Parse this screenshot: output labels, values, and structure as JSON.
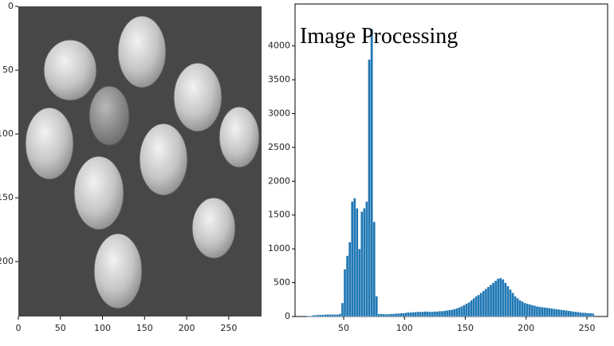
{
  "chart_data": [
    {
      "type": "image",
      "xlim": [
        0,
        289
      ],
      "ylim": [
        243,
        0
      ],
      "xticks": [
        0,
        50,
        100,
        150,
        200,
        250
      ],
      "yticks": [
        0,
        50,
        100,
        150,
        200
      ]
    },
    {
      "type": "histogram",
      "title": "Image Processing",
      "color": "#1f77b4",
      "bins": [
        20,
        22,
        24,
        26,
        28,
        30,
        32,
        34,
        36,
        38,
        40,
        42,
        44,
        46,
        48,
        50,
        52,
        54,
        56,
        58,
        60,
        62,
        64,
        66,
        68,
        70,
        72,
        74,
        76,
        78,
        80,
        82,
        84,
        86,
        88,
        90,
        92,
        94,
        96,
        98,
        100,
        102,
        104,
        106,
        108,
        110,
        112,
        114,
        116,
        118,
        120,
        122,
        124,
        126,
        128,
        130,
        132,
        134,
        136,
        138,
        140,
        142,
        144,
        146,
        148,
        150,
        152,
        154,
        156,
        158,
        160,
        162,
        164,
        166,
        168,
        170,
        172,
        174,
        176,
        178,
        180,
        182,
        184,
        186,
        188,
        190,
        192,
        194,
        196,
        198,
        200,
        202,
        204,
        206,
        208,
        210,
        212,
        214,
        216,
        218,
        220,
        222,
        224,
        226,
        228,
        230,
        232,
        234,
        236,
        238,
        240,
        242,
        244,
        246,
        248,
        250,
        252,
        254,
        256
      ],
      "values": [
        10,
        10,
        20,
        20,
        25,
        25,
        25,
        30,
        30,
        30,
        30,
        30,
        30,
        40,
        200,
        700,
        900,
        1100,
        1700,
        1750,
        1600,
        1000,
        1550,
        1600,
        1700,
        3800,
        4250,
        1400,
        300,
        40,
        40,
        35,
        35,
        35,
        40,
        40,
        45,
        45,
        50,
        50,
        55,
        60,
        60,
        65,
        65,
        70,
        70,
        70,
        75,
        75,
        70,
        70,
        75,
        75,
        80,
        80,
        85,
        90,
        95,
        100,
        110,
        120,
        135,
        150,
        170,
        190,
        210,
        240,
        270,
        300,
        320,
        350,
        380,
        410,
        440,
        470,
        500,
        530,
        560,
        570,
        550,
        500,
        450,
        400,
        350,
        300,
        270,
        240,
        220,
        200,
        190,
        180,
        170,
        160,
        150,
        145,
        140,
        135,
        130,
        125,
        120,
        115,
        110,
        105,
        100,
        95,
        90,
        85,
        80,
        75,
        70,
        65,
        60,
        55,
        55,
        50,
        50,
        45
      ],
      "xlim": [
        10,
        267
      ],
      "ylim": [
        0,
        4620
      ],
      "xticks": [
        50,
        100,
        150,
        200,
        250
      ],
      "yticks": [
        0,
        500,
        1000,
        1500,
        2000,
        2500,
        3000,
        3500,
        4000
      ]
    }
  ]
}
